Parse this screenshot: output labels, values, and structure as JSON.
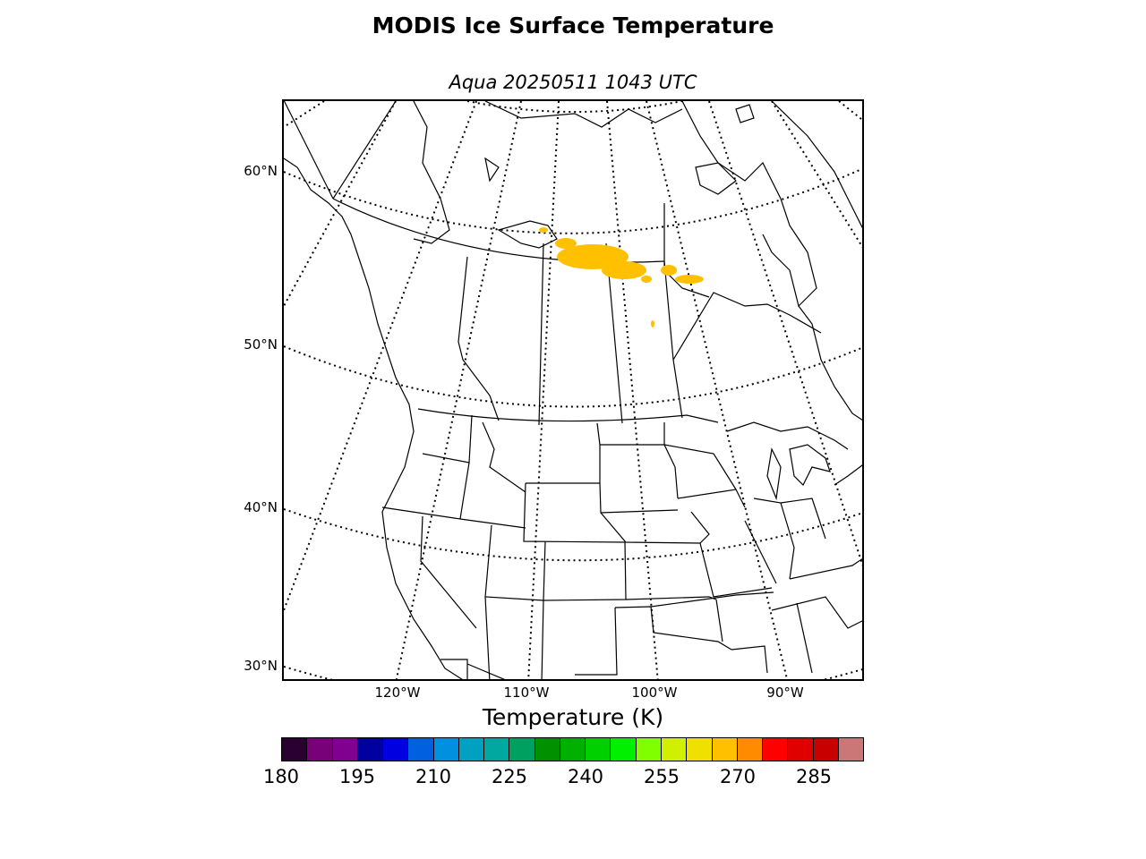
{
  "title": "MODIS Ice Surface Temperature",
  "subtitle": "Aqua 20250511 1043 UTC",
  "map": {
    "lat_labels": [
      "60°N",
      "50°N",
      "40°N",
      "30°N"
    ],
    "lon_labels": [
      "120°W",
      "110°W",
      "100°W",
      "90°W"
    ]
  },
  "colorbar": {
    "title": "Temperature (K)",
    "ticks": [
      "180",
      "195",
      "210",
      "225",
      "240",
      "255",
      "270",
      "285"
    ],
    "colors": [
      "#2a0030",
      "#780078",
      "#800090",
      "#0000a0",
      "#0000e0",
      "#0060e0",
      "#0090e0",
      "#00a0c0",
      "#00a8a0",
      "#00a060",
      "#009000",
      "#00b000",
      "#00d000",
      "#00f000",
      "#80ff00",
      "#d0f000",
      "#f0e000",
      "#ffc000",
      "#ff8c00",
      "#ff0000",
      "#e00000",
      "#c80000",
      "#cc7777"
    ]
  },
  "data_colors": {
    "ice_temperature_points": "#ffc000"
  }
}
